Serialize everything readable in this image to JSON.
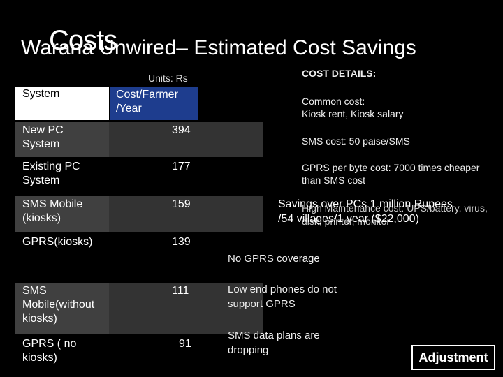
{
  "slide": {
    "title_overlay": "Costs",
    "title": "Warana Unwired– Estimated Cost Savings",
    "units": "Units: Rs"
  },
  "table": {
    "headers": [
      "System",
      "Cost/Farmer /Year"
    ],
    "rows": [
      {
        "system": "New PC System",
        "cost": "394"
      },
      {
        "system": "Existing PC System",
        "cost": "177"
      },
      {
        "system": "SMS Mobile (kiosks)",
        "cost": "159"
      },
      {
        "system": "GPRS(kiosks)",
        "cost": "139"
      },
      {
        "system": "SMS Mobile(without kiosks)",
        "cost": "111"
      },
      {
        "system": "GPRS ( no kiosks)",
        "cost": "91"
      }
    ]
  },
  "details": {
    "heading": "COST DETAILS:",
    "common_cost": "Common cost:",
    "common_cost_items": "Kiosk rent, Kiosk salary",
    "sms_cost": "SMS cost: 50 paise/SMS",
    "gprs_cost": "GPRS per byte cost: 7000 times cheaper than SMS cost",
    "high_maintenance": "High Maintenance cost: UPS/battery, virus, disk, printer, monitor",
    "savings": "Savings over PCs 1 million Rupees /54 villages/1 year ($22,000)"
  },
  "notes": {
    "no_gprs": "No GPRS coverage",
    "low_end": "Low end phones do not support GPRS",
    "sms_plans": "SMS data plans are dropping"
  },
  "buttons": {
    "adjustment": "Adjustment"
  }
}
